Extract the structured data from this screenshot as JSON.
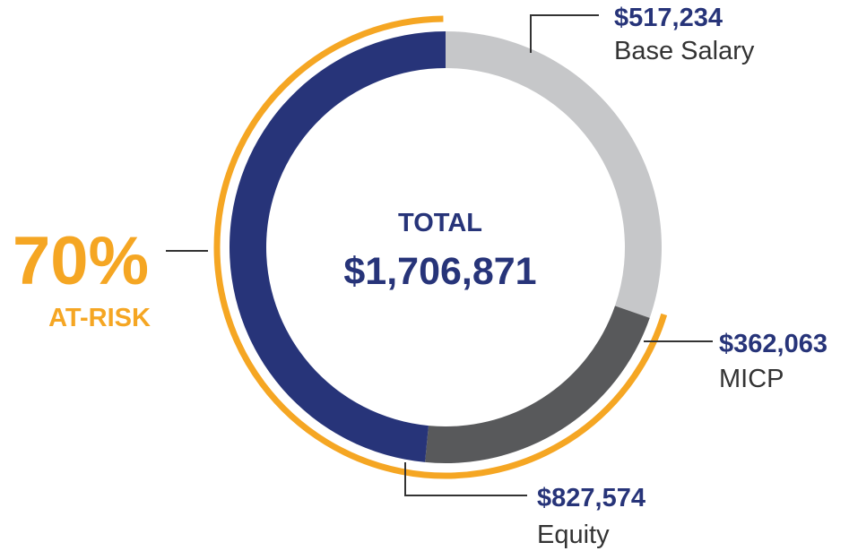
{
  "chart_data": {
    "type": "pie",
    "subtype": "donut",
    "center_label": "TOTAL",
    "total_label": "$1,706,871",
    "total": 1706871,
    "slices": [
      {
        "name": "Base Salary",
        "value": 517234,
        "value_label": "$517,234",
        "color": "#c6c7c9"
      },
      {
        "name": "MICP",
        "value": 362063,
        "value_label": "$362,063",
        "color": "#58595b"
      },
      {
        "name": "Equity",
        "value": 827574,
        "value_label": "$827,574",
        "color": "#273479"
      }
    ],
    "at_risk": {
      "percent_label": "70%",
      "label": "AT-RISK",
      "covers": [
        "MICP",
        "Equity"
      ],
      "color": "#f5a623"
    }
  },
  "colors": {
    "navy": "#273479",
    "orange": "#f5a623",
    "text": "#333333",
    "leader": "#333333"
  }
}
